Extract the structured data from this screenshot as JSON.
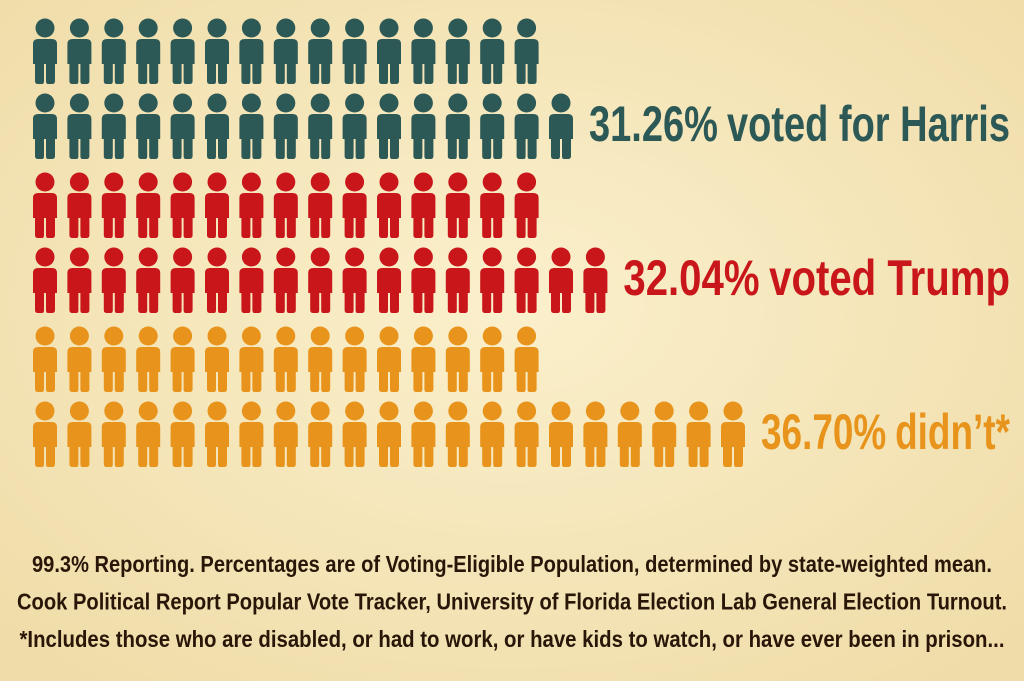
{
  "chart_data": {
    "type": "pictograph",
    "categories": [
      "voted for Harris",
      "voted Trump",
      "didn’t*"
    ],
    "values": [
      31.26,
      32.04,
      36.7
    ],
    "value_labels": [
      "31.26%",
      "32.04%",
      "36.70%"
    ],
    "colors": [
      "#2c5856",
      "#c8161b",
      "#e8941c"
    ],
    "notes": [
      "99.3% Reporting. Percentages are of Voting-Eligible Population, determined by state-weighted mean.",
      "Cook Political Report Popular Vote Tracker, University of Florida Election Lab General Election Turnout.",
      "*Includes those who are disabled, or had to work, or have kids to watch, or have ever been in prison..."
    ]
  }
}
